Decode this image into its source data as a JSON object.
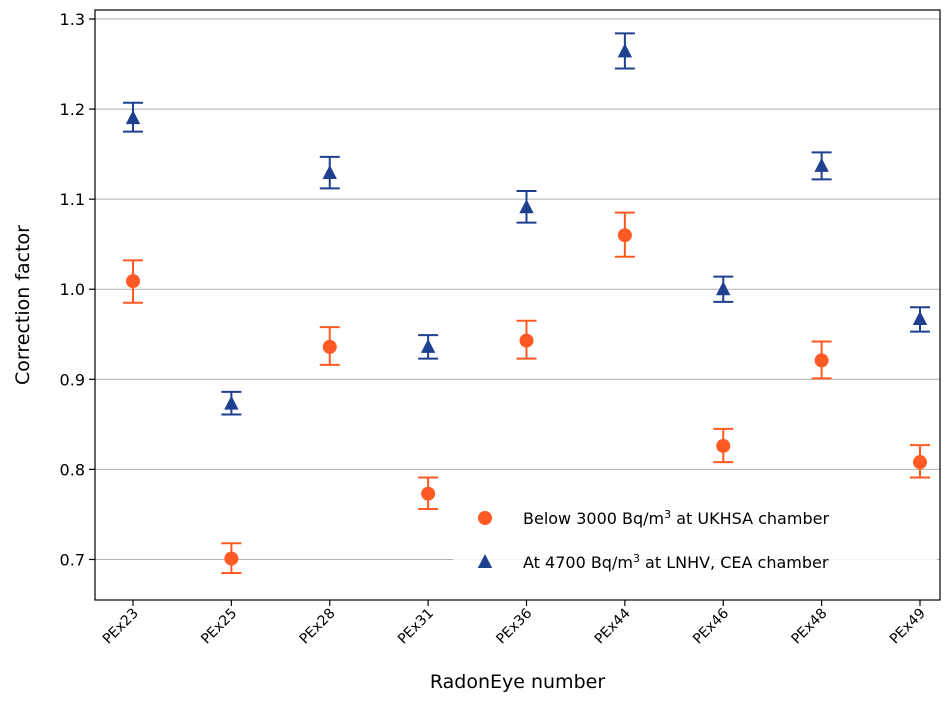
{
  "chart_data": {
    "type": "scatter",
    "xlabel": "RadonEye number",
    "ylabel": "Correction factor",
    "categories": [
      "PEx23",
      "PEx25",
      "PEx28",
      "PEx31",
      "PEx36",
      "PEx44",
      "PEx46",
      "PEx48",
      "PEx49"
    ],
    "ylim": [
      0.655,
      1.31
    ],
    "yticks": [
      "0.7",
      "0.8",
      "0.9",
      "1.0",
      "1.1",
      "1.2",
      "1.3"
    ],
    "grid": "horizontal",
    "legend_position": "lower-right",
    "series": [
      {
        "name_parts": [
          "Below 3000 Bq/m",
          "3",
          " at UKHSA chamber"
        ],
        "marker": "circle",
        "color": "#ff5a24",
        "values": [
          1.009,
          0.701,
          0.936,
          0.773,
          0.943,
          1.06,
          0.826,
          0.921,
          0.808
        ],
        "err_low": [
          0.985,
          0.685,
          0.916,
          0.756,
          0.923,
          1.036,
          0.808,
          0.901,
          0.791
        ],
        "err_high": [
          1.032,
          0.718,
          0.958,
          0.791,
          0.965,
          1.085,
          0.845,
          0.942,
          0.827
        ]
      },
      {
        "name_parts": [
          "At 4700 Bq/m",
          "3",
          " at LNHV, CEA chamber"
        ],
        "marker": "triangle",
        "color": "#1f3f8f",
        "values": [
          1.19,
          0.873,
          1.129,
          0.936,
          1.091,
          1.264,
          1.0,
          1.137,
          0.967
        ],
        "err_low": [
          1.175,
          0.861,
          1.112,
          0.923,
          1.074,
          1.245,
          0.986,
          1.122,
          0.953
        ],
        "err_high": [
          1.207,
          0.886,
          1.147,
          0.949,
          1.109,
          1.284,
          1.014,
          1.152,
          0.98
        ]
      }
    ]
  }
}
